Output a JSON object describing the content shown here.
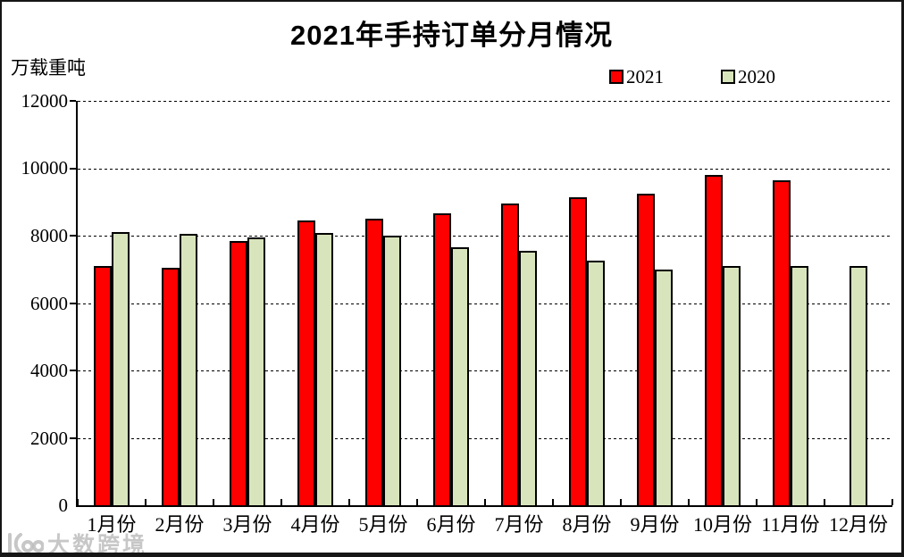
{
  "title": "2021年手持订单分月情况",
  "y_axis_unit": "万载重吨",
  "legend": [
    {
      "label": "2021",
      "color": "#FF0000"
    },
    {
      "label": "2020",
      "color": "#D8E4BC"
    }
  ],
  "chart_data": {
    "type": "bar",
    "title": "2021年手持订单分月情况",
    "xlabel": "",
    "ylabel": "万载重吨",
    "categories": [
      "1月份",
      "2月份",
      "3月份",
      "4月份",
      "5月份",
      "6月份",
      "7月份",
      "8月份",
      "9月份",
      "10月份",
      "11月份",
      "12月份"
    ],
    "series": [
      {
        "name": "2021",
        "color": "#FF0000",
        "values": [
          7100,
          7050,
          7850,
          8450,
          8500,
          8650,
          8950,
          9150,
          9250,
          9800,
          9650,
          null
        ]
      },
      {
        "name": "2020",
        "color": "#D8E4BC",
        "values": [
          8100,
          8050,
          7950,
          8070,
          8000,
          7650,
          7550,
          7270,
          7000,
          7100,
          7100,
          7100
        ]
      }
    ],
    "ylim": [
      0,
      12000
    ],
    "yticks": [
      0,
      2000,
      4000,
      6000,
      8000,
      10000,
      12000
    ],
    "grid": "dashed-horizontal",
    "legend_position": "top-right",
    "bar_border_color": "#000000"
  },
  "watermark": {
    "text": "大数跨境"
  }
}
